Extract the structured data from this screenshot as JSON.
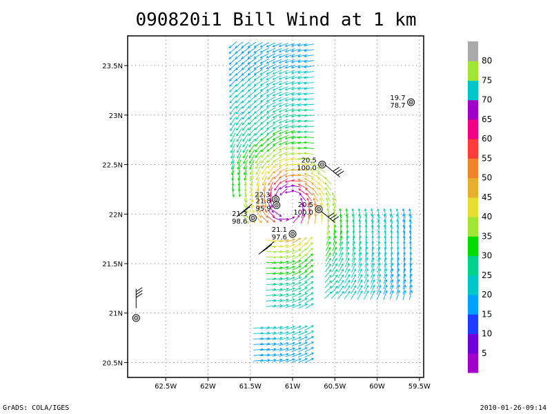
{
  "chart_data": {
    "type": "scatter",
    "title": "090820i1 Bill Wind at 1 km",
    "xlabel": "",
    "ylabel": "",
    "xlim": [
      -62.95,
      -59.45
    ],
    "ylim": [
      20.35,
      23.8
    ],
    "x_ticks": [
      {
        "value": -62.5,
        "label": "62.5W"
      },
      {
        "value": -62.0,
        "label": "62W"
      },
      {
        "value": -61.5,
        "label": "61.5W"
      },
      {
        "value": -61.0,
        "label": "61W"
      },
      {
        "value": -60.5,
        "label": "60.5W"
      },
      {
        "value": -60.0,
        "label": "60W"
      },
      {
        "value": -59.5,
        "label": "59.5W"
      }
    ],
    "y_ticks": [
      {
        "value": 20.5,
        "label": "20.5N"
      },
      {
        "value": 21.0,
        "label": "21N"
      },
      {
        "value": 21.5,
        "label": "21.5N"
      },
      {
        "value": 22.0,
        "label": "22N"
      },
      {
        "value": 22.5,
        "label": "22.5N"
      },
      {
        "value": 23.0,
        "label": "23N"
      },
      {
        "value": 23.5,
        "label": "23.5N"
      }
    ],
    "grid": true,
    "storm_center": {
      "lon": -61.05,
      "lat": 22.1
    },
    "colorbar": {
      "labels": [
        "5",
        "10",
        "15",
        "20",
        "25",
        "30",
        "35",
        "40",
        "45",
        "50",
        "55",
        "60",
        "65",
        "70",
        "75",
        "80"
      ],
      "colors": [
        "#a000c8",
        "#6e00dc",
        "#1e3cff",
        "#00a0ff",
        "#00c8c8",
        "#00d28c",
        "#00dc00",
        "#a0e632",
        "#e6dc32",
        "#e6af2d",
        "#f08228",
        "#fa3c3c",
        "#f00082",
        "#a000c8",
        "#00c8c8",
        "#a0e632",
        "#aaaaaa"
      ]
    },
    "stations": [
      {
        "lon": -59.6,
        "lat": 23.13,
        "top": "19.7",
        "bottom": "78.7"
      },
      {
        "lon": -60.65,
        "lat": 22.5,
        "top": "20.5",
        "bottom": "100.0"
      },
      {
        "lon": -61.2,
        "lat": 22.15,
        "top": "22.3",
        "bottom": ""
      },
      {
        "lon": -61.19,
        "lat": 22.09,
        "top": "21.8",
        "bottom": "95.9"
      },
      {
        "lon": -60.69,
        "lat": 22.05,
        "top": "20.5",
        "bottom": "100.0"
      },
      {
        "lon": -61.47,
        "lat": 21.96,
        "top": "21.3",
        "bottom": "98.6"
      },
      {
        "lon": -61.0,
        "lat": 21.8,
        "top": "21.1",
        "bottom": "97.6"
      },
      {
        "lon": -62.85,
        "lat": 20.95,
        "top": "",
        "bottom": ""
      }
    ]
  },
  "footer": {
    "left": "GrADS: COLA/IGES",
    "right": "2010-01-26-09:14"
  }
}
